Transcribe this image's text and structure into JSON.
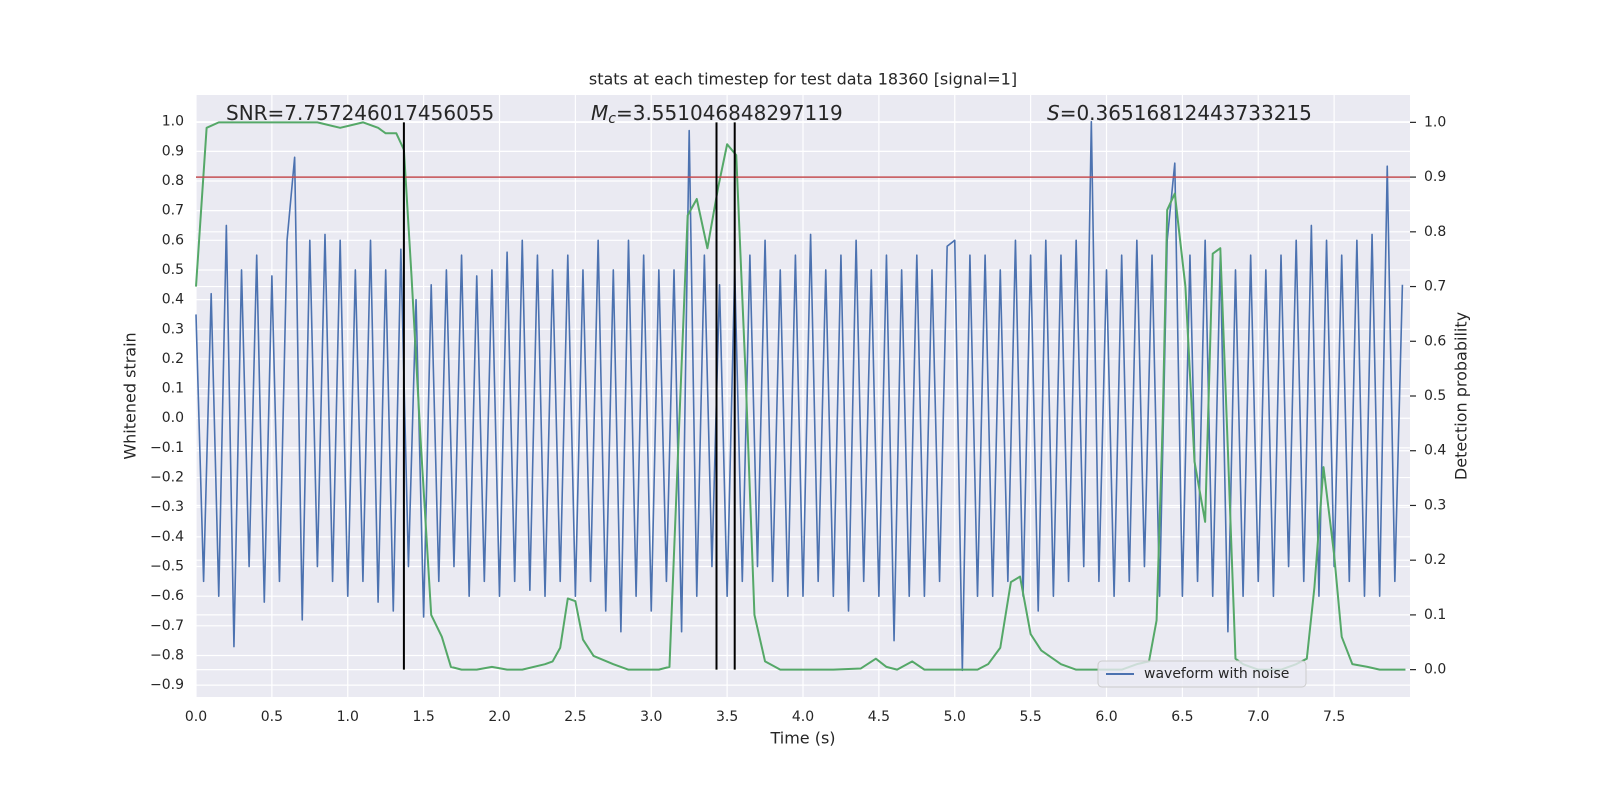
{
  "chart_data": {
    "type": "line",
    "title": "stats at each timestep for test data 18360 [signal=1]",
    "xlabel": "Time (s)",
    "ylabel": "Whitened strain",
    "y2label": "Detection probability",
    "annotations": [
      {
        "text": "SNR=7.757246017456055"
      },
      {
        "symbol": "M",
        "sub": "c",
        "text": "=3.551046848297119"
      },
      {
        "symbol": "S",
        "text": "=0.36516812443733215"
      }
    ],
    "xlim": [
      0,
      8.0
    ],
    "ylim": [
      -0.94,
      1.09
    ],
    "y2lim": [
      -0.05,
      1.05
    ],
    "xticks": [
      {
        "value": 0,
        "label": "0.0"
      },
      0.5,
      {
        "value": 1,
        "label": "1.0"
      },
      1.5,
      {
        "value": 2,
        "label": "2.0"
      },
      2.5,
      {
        "value": 3,
        "label": "3.0"
      },
      3.5,
      {
        "value": 4,
        "label": "4.0"
      },
      4.5,
      {
        "value": 5,
        "label": "5.0"
      },
      5.5,
      {
        "value": 6,
        "label": "6.0"
      },
      6.5,
      {
        "value": 7,
        "label": "7.0"
      },
      7.5
    ],
    "yticks": [
      {
        "value": 1,
        "label": "1.0"
      },
      0.9,
      0.8,
      0.7,
      0.6,
      0.5,
      0.4,
      0.3,
      0.2,
      0.1,
      {
        "value": 0,
        "label": "0.0"
      },
      {
        "value": -0.1,
        "label": "−0.1"
      },
      {
        "value": -0.2,
        "label": "−0.2"
      },
      {
        "value": -0.3,
        "label": "−0.3"
      },
      {
        "value": -0.4,
        "label": "−0.4"
      },
      {
        "value": -0.5,
        "label": "−0.5"
      },
      {
        "value": -0.6,
        "label": "−0.6"
      },
      {
        "value": -0.7,
        "label": "−0.7"
      },
      {
        "value": -0.8,
        "label": "−0.8"
      },
      {
        "value": -0.9,
        "label": "−0.9"
      }
    ],
    "y2ticks": [
      {
        "value": 0,
        "label": "0.0"
      },
      0.1,
      0.2,
      0.3,
      0.4,
      0.5,
      0.6,
      0.7,
      0.8,
      0.9,
      {
        "value": 1,
        "label": "1.0"
      }
    ],
    "grid": true,
    "legend": "lower right",
    "hlines": [
      {
        "value": 0.9,
        "axis": "y2",
        "color": "#c44e52"
      }
    ],
    "vlines": {
      "x": [
        1.37,
        3.43,
        3.55
      ],
      "ymin": 0,
      "ymax": 1,
      "axis": "y2",
      "color": "#000000"
    },
    "series": [
      {
        "name": "waveform with noise",
        "color": "#4c72b0",
        "axis": "y",
        "x": [
          0,
          0.05,
          0.1,
          0.15,
          0.2,
          0.25,
          0.3,
          0.35,
          0.4,
          0.45,
          0.5,
          0.55,
          0.6,
          0.65,
          0.7,
          0.75,
          0.8,
          0.85,
          0.9,
          0.95,
          1,
          1.05,
          1.1,
          1.15,
          1.2,
          1.25,
          1.3,
          1.35,
          1.4,
          1.45,
          1.5,
          1.55,
          1.6,
          1.65,
          1.7,
          1.75,
          1.8,
          1.85,
          1.9,
          1.95,
          2,
          2.05,
          2.1,
          2.15,
          2.2,
          2.25,
          2.3,
          2.35,
          2.4,
          2.45,
          2.5,
          2.55,
          2.6,
          2.65,
          2.7,
          2.75,
          2.8,
          2.85,
          2.9,
          2.95,
          3,
          3.05,
          3.1,
          3.15,
          3.2,
          3.25,
          3.3,
          3.35,
          3.4,
          3.45,
          3.5,
          3.55,
          3.6,
          3.65,
          3.7,
          3.75,
          3.8,
          3.85,
          3.9,
          3.95,
          4,
          4.05,
          4.1,
          4.15,
          4.2,
          4.25,
          4.3,
          4.35,
          4.4,
          4.45,
          4.5,
          4.55,
          4.6,
          4.65,
          4.7,
          4.75,
          4.8,
          4.85,
          4.9,
          4.95,
          5,
          5.05,
          5.1,
          5.15,
          5.2,
          5.25,
          5.3,
          5.35,
          5.4,
          5.45,
          5.5,
          5.55,
          5.6,
          5.65,
          5.7,
          5.75,
          5.8,
          5.85,
          5.9,
          5.95,
          6,
          6.05,
          6.1,
          6.15,
          6.2,
          6.25,
          6.3,
          6.35,
          6.4,
          6.45,
          6.5,
          6.55,
          6.6,
          6.65,
          6.7,
          6.75,
          6.8,
          6.85,
          6.9,
          6.95,
          7,
          7.05,
          7.1,
          7.15,
          7.2,
          7.25,
          7.3,
          7.35,
          7.4,
          7.45,
          7.5,
          7.55,
          7.6,
          7.65,
          7.7,
          7.75,
          7.8,
          7.85,
          7.9,
          7.95
        ],
        "values": [
          0.35,
          -0.55,
          0.42,
          -0.6,
          0.65,
          -0.77,
          0.5,
          -0.5,
          0.55,
          -0.62,
          0.48,
          -0.55,
          0.6,
          0.88,
          -0.68,
          0.6,
          -0.5,
          0.62,
          -0.55,
          0.6,
          -0.6,
          0.5,
          -0.55,
          0.6,
          -0.62,
          0.5,
          -0.65,
          0.57,
          -0.5,
          0.4,
          -0.67,
          0.45,
          -0.55,
          0.5,
          -0.5,
          0.55,
          -0.6,
          0.48,
          -0.55,
          0.5,
          -0.6,
          0.56,
          -0.55,
          0.6,
          -0.58,
          0.55,
          -0.6,
          0.5,
          -0.55,
          0.55,
          -0.6,
          0.5,
          -0.55,
          0.6,
          -0.65,
          0.5,
          -0.72,
          0.6,
          -0.6,
          0.55,
          -0.65,
          0.5,
          -0.55,
          0.5,
          -0.72,
          0.97,
          -0.6,
          0.55,
          -0.5,
          0.45,
          -0.6,
          0.5,
          -0.55,
          0.55,
          -0.5,
          0.6,
          -0.55,
          0.5,
          -0.6,
          0.55,
          -0.6,
          0.62,
          -0.55,
          0.5,
          -0.6,
          0.55,
          -0.65,
          0.6,
          -0.55,
          0.5,
          -0.6,
          0.55,
          -0.75,
          0.5,
          -0.6,
          0.55,
          -0.6,
          0.5,
          -0.55,
          0.58,
          0.6,
          -0.85,
          0.55,
          -0.6,
          0.55,
          -0.6,
          0.5,
          -0.55,
          0.6,
          -0.6,
          0.55,
          -0.65,
          0.6,
          -0.6,
          0.55,
          -0.55,
          0.6,
          -0.5,
          1.0,
          -0.55,
          0.5,
          -0.6,
          0.55,
          -0.55,
          0.6,
          -0.5,
          0.55,
          -0.6,
          0.6,
          0.86,
          -0.6,
          0.55,
          -0.55,
          0.6,
          -0.6,
          0.55,
          -0.72,
          0.5,
          -0.6,
          0.55,
          -0.55,
          0.5,
          -0.6,
          0.55,
          -0.5,
          0.6,
          -0.55,
          0.65,
          -0.6,
          0.6,
          -0.5,
          0.55,
          -0.55,
          0.6,
          -0.6,
          0.62,
          -0.6,
          0.85,
          -0.55,
          0.45
        ]
      },
      {
        "color": "#55a868",
        "axis": "y2",
        "x": [
          0,
          0.07,
          0.15,
          0.5,
          0.8,
          0.95,
          1.1,
          1.2,
          1.25,
          1.32,
          1.37,
          1.42,
          1.48,
          1.55,
          1.62,
          1.68,
          1.75,
          1.85,
          1.95,
          2.05,
          2.15,
          2.3,
          2.35,
          2.4,
          2.45,
          2.5,
          2.55,
          2.62,
          2.75,
          2.85,
          2.95,
          3.05,
          3.12,
          3.18,
          3.24,
          3.3,
          3.37,
          3.44,
          3.5,
          3.56,
          3.62,
          3.68,
          3.75,
          3.85,
          3.95,
          4.2,
          4.38,
          4.48,
          4.55,
          4.62,
          4.72,
          4.8,
          5.0,
          5.15,
          5.22,
          5.3,
          5.37,
          5.43,
          5.5,
          5.57,
          5.7,
          5.8,
          5.95,
          6.1,
          6.2,
          6.28,
          6.33,
          6.37,
          6.4,
          6.45,
          6.52,
          6.58,
          6.65,
          6.7,
          6.75,
          6.8,
          6.85,
          6.9,
          7.0,
          7.15,
          7.25,
          7.32,
          7.37,
          7.43,
          7.5,
          7.55,
          7.62,
          7.72,
          7.8,
          7.97
        ],
        "values": [
          0.7,
          0.99,
          1.0,
          1.0,
          1.0,
          0.99,
          1.0,
          0.99,
          0.98,
          0.98,
          0.95,
          0.72,
          0.42,
          0.1,
          0.06,
          0.005,
          0.0,
          0.0,
          0.005,
          0.0,
          0.0,
          0.01,
          0.015,
          0.04,
          0.13,
          0.125,
          0.055,
          0.025,
          0.01,
          0.0,
          0.0,
          0.0,
          0.005,
          0.42,
          0.83,
          0.86,
          0.77,
          0.88,
          0.96,
          0.94,
          0.55,
          0.1,
          0.015,
          0.0,
          0.0,
          0.0,
          0.002,
          0.02,
          0.005,
          0.0,
          0.015,
          0.0,
          0.0,
          0.0,
          0.01,
          0.04,
          0.16,
          0.17,
          0.065,
          0.035,
          0.01,
          0.0,
          0.0,
          0.0,
          0.01,
          0.015,
          0.09,
          0.45,
          0.84,
          0.87,
          0.7,
          0.38,
          0.27,
          0.76,
          0.77,
          0.4,
          0.02,
          0.01,
          0.0,
          0.0,
          0.01,
          0.02,
          0.15,
          0.37,
          0.21,
          0.06,
          0.01,
          0.005,
          0.0,
          0.0
        ]
      }
    ]
  }
}
